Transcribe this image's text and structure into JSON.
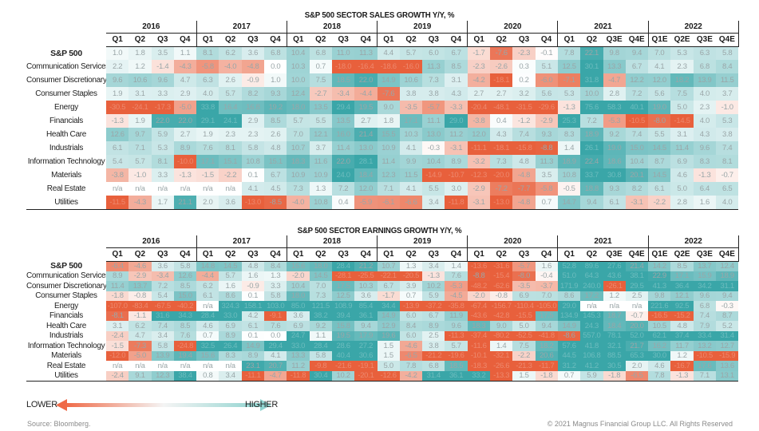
{
  "colors": {
    "low": "#e8603c",
    "mid": "#ffffff",
    "high": "#3aa6a8"
  },
  "legend": {
    "lower_label": "LOWER",
    "higher_label": "HIGHER",
    "low_color": "#ef6a47",
    "high_color": "#8fd3cf"
  },
  "footer": {
    "source": "Source: Bloomberg.",
    "copyright": "© 2021 Magnus Financial Group LLC. All Rights Reserved"
  },
  "chart_data": [
    {
      "type": "heatmap",
      "title": "S&P 500 SECTOR SALES GROWTH Y/Y, %",
      "years": [
        {
          "label": "2016",
          "quarters": [
            "Q1",
            "Q2",
            "Q3",
            "Q4"
          ]
        },
        {
          "label": "2017",
          "quarters": [
            "Q1",
            "Q2",
            "Q3",
            "Q4"
          ]
        },
        {
          "label": "2018",
          "quarters": [
            "Q1",
            "Q2",
            "Q3",
            "Q4"
          ]
        },
        {
          "label": "2019",
          "quarters": [
            "Q1",
            "Q2",
            "Q3",
            "Q4"
          ]
        },
        {
          "label": "2020",
          "quarters": [
            "Q1",
            "Q2",
            "Q3",
            "Q4"
          ]
        },
        {
          "label": "2021",
          "quarters": [
            "Q1",
            "Q2",
            "Q3E",
            "Q4E"
          ]
        },
        {
          "label": "2022",
          "quarters": [
            "Q1E",
            "Q2E",
            "Q3E",
            "Q4E"
          ]
        }
      ],
      "rows": [
        {
          "label": "S&P 500",
          "bold": true,
          "values": [
            "1.0",
            "1.8",
            "3.5",
            "1.1",
            "8.1",
            "6.2",
            "3.6",
            "6.8",
            "10.4",
            "6.8",
            "11.0",
            "11.3",
            "4.4",
            "5.7",
            "6.0",
            "6.7",
            "-1.7",
            "-7.6",
            "-2.3",
            "-0.1",
            "7.8",
            "22.1",
            "9.8",
            "9.4",
            "7.0",
            "5.3",
            "6.3",
            "5.8"
          ]
        },
        {
          "label": "Communication Services",
          "values": [
            "2.2",
            "1.2",
            "-1.4",
            "-4.3",
            "-5.8",
            "-4.0",
            "-4.8",
            "0.0",
            "10.3",
            "0.7",
            "-18.0",
            "-16.4",
            "-18.6",
            "-16.0",
            "11.3",
            "8.5",
            "-2.3",
            "-2.6",
            "0.3",
            "5.1",
            "12.5",
            "30.1",
            "13.3",
            "6.7",
            "4.1",
            "2.3",
            "6.8",
            "8.4"
          ]
        },
        {
          "label": "Consumer Discretionary",
          "values": [
            "9.6",
            "10.6",
            "9.6",
            "4.7",
            "6.3",
            "2.6",
            "-0.9",
            "1.0",
            "10.0",
            "7.5",
            "18.5",
            "22.0",
            "14.9",
            "10.6",
            "7.3",
            "3.1",
            "-4.2",
            "-18.1",
            "0.2",
            "-6.0",
            "-7.1",
            "31.8",
            "-4.7",
            "12.2",
            "12.0",
            "18.2",
            "13.9",
            "11.5"
          ]
        },
        {
          "label": "Consumer Staples",
          "values": [
            "1.9",
            "3.1",
            "3.3",
            "2.9",
            "4.0",
            "5.7",
            "8.2",
            "9.3",
            "12.4",
            "-2.7",
            "-3.4",
            "-4.4",
            "-7.6",
            "3.8",
            "3.8",
            "4.3",
            "2.7",
            "2.7",
            "3.2",
            "5.6",
            "5.3",
            "10.0",
            "2.8",
            "7.2",
            "5.6",
            "7.5",
            "4.0",
            "3.7"
          ]
        },
        {
          "label": "Energy",
          "values": [
            "-30.5",
            "-24.1",
            "-17.3",
            "-5.0",
            "33.8",
            "16.4",
            "16.8",
            "19.2",
            "18.0",
            "13.5",
            "29.4",
            "19.5",
            "9.0",
            "-3.5",
            "-5.7",
            "-3.3",
            "-20.4",
            "-48.1",
            "-31.5",
            "-29.6",
            "-1.3",
            "75.6",
            "58.3",
            "40.1",
            "19.0",
            "5.0",
            "2.3",
            "-1.0"
          ]
        },
        {
          "label": "Financials",
          "values": [
            "-1.3",
            "1.9",
            "22.0",
            "22.0",
            "29.1",
            "24.1",
            "2.9",
            "8.5",
            "5.7",
            "5.5",
            "13.5",
            "2.7",
            "1.8",
            "17.1",
            "11.1",
            "29.0",
            "-3.8",
            "0.4",
            "-1.2",
            "-2.9",
            "25.3",
            "7.2",
            "-5.3",
            "-10.5",
            "-8.0",
            "-14.5",
            "4.0",
            "5.3"
          ]
        },
        {
          "label": "Health Care",
          "values": [
            "12.6",
            "9.7",
            "5.9",
            "2.7",
            "1.9",
            "2.3",
            "2.3",
            "2.6",
            "7.0",
            "12.1",
            "16.0",
            "21.4",
            "15.5",
            "10.3",
            "13.0",
            "11.2",
            "12.0",
            "4.3",
            "7.4",
            "9.3",
            "8.3",
            "18.9",
            "9.2",
            "7.4",
            "5.5",
            "3.1",
            "4.3",
            "3.8"
          ]
        },
        {
          "label": "Industrials",
          "values": [
            "6.1",
            "7.1",
            "5.3",
            "8.9",
            "7.6",
            "8.1",
            "5.8",
            "4.8",
            "10.7",
            "3.7",
            "11.4",
            "13.0",
            "10.9",
            "4.1",
            "-0.3",
            "-3.1",
            "-11.1",
            "-18.1",
            "-15.8",
            "-8.8",
            "1.4",
            "26.1",
            "19.0",
            "15.0",
            "14.5",
            "11.4",
            "9.6",
            "7.4"
          ]
        },
        {
          "label": "Information Technology",
          "values": [
            "5.4",
            "5.7",
            "8.1",
            "-10.0",
            "17.1",
            "15.1",
            "10.8",
            "15.1",
            "18.3",
            "11.6",
            "22.0",
            "28.1",
            "11.4",
            "9.9",
            "10.4",
            "8.9",
            "-3.2",
            "7.3",
            "4.8",
            "11.3",
            "18.9",
            "22.4",
            "18.6",
            "10.4",
            "8.7",
            "6.9",
            "8.3",
            "8.1"
          ]
        },
        {
          "label": "Materials",
          "values": [
            "-3.8",
            "-1.0",
            "3.3",
            "-1.3",
            "-1.5",
            "-2.2",
            "0.1",
            "6.7",
            "10.9",
            "10.9",
            "24.0",
            "18.4",
            "12.3",
            "11.5",
            "-14.9",
            "-10.7",
            "-12.3",
            "-20.0",
            "-4.8",
            "3.5",
            "10.8",
            "33.7",
            "30.8",
            "20.1",
            "14.5",
            "4.6",
            "-1.3",
            "-0.7"
          ]
        },
        {
          "label": "Real Estate",
          "values": [
            "n/a",
            "n/a",
            "n/a",
            "n/a",
            "n/a",
            "n/a",
            "4.1",
            "4.5",
            "7.3",
            "1.3",
            "7.2",
            "12.0",
            "7.1",
            "4.1",
            "5.5",
            "3.0",
            "-2.9",
            "-7.2",
            "-7.7",
            "-5.8",
            "-0.5",
            "18.8",
            "9.3",
            "8.2",
            "6.1",
            "5.0",
            "6.4",
            "6.5"
          ]
        },
        {
          "label": "Utilities",
          "values": [
            "-11.5",
            "-4.3",
            "1.7",
            "21.1",
            "2.0",
            "3.6",
            "-13.0",
            "-8.5",
            "-4.0",
            "10.8",
            "0.4",
            "-5.9",
            "-6.1",
            "-6.6",
            "3.4",
            "-11.8",
            "-3.1",
            "-13.0",
            "-4.8",
            "0.7",
            "14.7",
            "9.4",
            "6.1",
            "-3.1",
            "-2.2",
            "2.8",
            "1.6",
            "4.0"
          ]
        }
      ]
    },
    {
      "type": "heatmap",
      "title": "S&P 500 SECTOR EARNINGS GROWTH Y/Y, %",
      "years": [
        {
          "label": "2016",
          "quarters": [
            "Q1",
            "Q2",
            "Q3",
            "Q4"
          ]
        },
        {
          "label": "2017",
          "quarters": [
            "Q1",
            "Q2",
            "Q3",
            "Q4"
          ]
        },
        {
          "label": "2018",
          "quarters": [
            "Q1",
            "Q2",
            "Q3",
            "Q4"
          ]
        },
        {
          "label": "2019",
          "quarters": [
            "Q1",
            "Q2",
            "Q3",
            "Q4"
          ]
        },
        {
          "label": "2020",
          "quarters": [
            "Q1",
            "Q2",
            "Q3",
            "Q4"
          ]
        },
        {
          "label": "2021",
          "quarters": [
            "Q1",
            "Q2",
            "Q3E",
            "Q4E"
          ]
        },
        {
          "label": "2022",
          "quarters": [
            "Q1E",
            "Q2E",
            "Q3E",
            "Q4E"
          ]
        }
      ],
      "rows": [
        {
          "label": "S&P 500",
          "bold": true,
          "values": [
            "-6.4",
            "-4.6",
            "3.6",
            "5.8",
            "14.8",
            "14.5",
            "4.8",
            "8.4",
            "16.6",
            "18.0",
            "28.4",
            "21.2",
            "10.7",
            "1.3",
            "3.4",
            "1.4",
            "-13.6",
            "-31.6",
            "-5.7",
            "1.6",
            "52.8",
            "89.6",
            "27.6",
            "21.4",
            "14.2",
            "8.5",
            "13.7",
            "12.4"
          ]
        },
        {
          "label": "Communication Services",
          "values": [
            "8.9",
            "-2.9",
            "-3.4",
            "12.6",
            "-4.4",
            "5.7",
            "1.6",
            "1.3",
            "-2.0",
            "14.5",
            "-28.1",
            "-25.5",
            "-22.1",
            "-20.5",
            "-1.3",
            "7.6",
            "-8.8",
            "-15.4",
            "-8.0",
            "-0.4",
            "51.0",
            "64.3",
            "43.6",
            "38.1",
            "22.9",
            "17.1",
            "15.9",
            "18.9"
          ]
        },
        {
          "label": "Consumer Discretionary",
          "values": [
            "11.4",
            "13.7",
            "7.2",
            "8.5",
            "6.2",
            "1.6",
            "-0.9",
            "3.3",
            "10.4",
            "7.0",
            "17.5",
            "10.3",
            "6.7",
            "3.9",
            "10.2",
            "-5.3",
            "-48.2",
            "-62.6",
            "-3.5",
            "-3.7",
            "171.9",
            "240.0",
            "-26.1",
            "29.5",
            "41.3",
            "36.4",
            "34.2",
            "31.1"
          ]
        },
        {
          "label": "Consumer Staples",
          "values": [
            "-1.8",
            "-0.8",
            "5.4",
            "15.0",
            "6.1",
            "8.6",
            "0.1",
            "5.8",
            "18.0",
            "7.3",
            "12.5",
            "3.6",
            "-1.7",
            "0.7",
            "5.9",
            "-4.5",
            "-2.0",
            "-0.8",
            "6.9",
            "7.0",
            "8.6",
            "17.2",
            "1.2",
            "2.5",
            "9.8",
            "12.1",
            "9.6",
            "9.4"
          ]
        },
        {
          "label": "Energy",
          "values": [
            "-107.0",
            "-83.4",
            "-67.5",
            "-40.2",
            "n/a",
            "324.3",
            "158.1",
            "103.0",
            "85.0",
            "121.5",
            "108.9",
            "85.4",
            "34.4",
            "-13.9",
            "-37.2",
            "-35.8",
            "-67.4",
            "-156.7",
            "-110.4",
            "-105.0",
            "29.0",
            "n/a",
            "n/a",
            "n/a",
            "221.6",
            "92.5",
            "6.8",
            "-0.3"
          ]
        },
        {
          "label": "Financials",
          "values": [
            "-8.1",
            "-1.1",
            "31.6",
            "34.3",
            "28.4",
            "33.0",
            "4.2",
            "-9.1",
            "3.6",
            "38.2",
            "39.4",
            "36.1",
            "14.9",
            "6.0",
            "6.7",
            "11.9",
            "-43.6",
            "-42.8",
            "-15.5",
            "17.5",
            "134.9",
            "145.3",
            "18.7",
            "-0.7",
            "-16.5",
            "-15.2",
            "7.4",
            "8.7"
          ]
        },
        {
          "label": "Health Care",
          "values": [
            "3.1",
            "6.2",
            "7.4",
            "8.5",
            "4.6",
            "6.9",
            "6.1",
            "7.6",
            "6.9",
            "9.2",
            "15.8",
            "9.4",
            "12.9",
            "8.4",
            "8.9",
            "9.6",
            "18.3",
            "9.0",
            "5.0",
            "9.4",
            "14.9",
            "24.3",
            "18.4",
            "20.0",
            "10.5",
            "4.8",
            "7.9",
            "5.2"
          ]
        },
        {
          "label": "Industrials",
          "values": [
            "-2.4",
            "4.7",
            "3.4",
            "7.6",
            "0.7",
            "8.9",
            "0.1",
            "0.0",
            "24.7",
            "1.1",
            "19.5",
            "17.9",
            "19.6",
            "6.0",
            "2.5",
            "-11.3",
            "-37.4",
            "-80.2",
            "-52.5",
            "-41.8",
            "-8.6",
            "557.0",
            "78.1",
            "52.0",
            "62.1",
            "37.4",
            "33.4",
            "31.4"
          ]
        },
        {
          "label": "Information Technology",
          "values": [
            "-1.5",
            "-7.3",
            "5.8",
            "-24.8",
            "32.5",
            "26.4",
            "14.9",
            "29.4",
            "33.0",
            "28.4",
            "28.6",
            "27.2",
            "1.5",
            "-4.6",
            "3.8",
            "5.7",
            "-11.6",
            "1.4",
            "7.5",
            "18.2",
            "57.6",
            "41.8",
            "32.1",
            "21.7",
            "16.2",
            "11.7",
            "13.2",
            "12.7"
          ]
        },
        {
          "label": "Materials",
          "values": [
            "-12.0",
            "-5.0",
            "13.9",
            "19.4",
            "15.6",
            "8.3",
            "8.9",
            "4.1",
            "13.3",
            "5.8",
            "40.4",
            "30.6",
            "1.5",
            "-6.5",
            "-21.2",
            "-19.6",
            "-10.1",
            "-32.1",
            "-2.2",
            "20.6",
            "44.5",
            "106.8",
            "88.5",
            "65.3",
            "30.0",
            "1.2",
            "-10.5",
            "-15.9"
          ]
        },
        {
          "label": "Real Estate",
          "values": [
            "n/a",
            "n/a",
            "n/a",
            "n/a",
            "n/a",
            "n/a",
            "23.1",
            "20.7",
            "11.2",
            "-9.8",
            "-21.6",
            "-19.1",
            "5.0",
            "7.8",
            "6.8",
            "18.5",
            "-18.3",
            "-26.6",
            "-21.3",
            "-11.7",
            "31.2",
            "41.2",
            "30.5",
            "2.0",
            "4.6",
            "-16.7",
            "17.6",
            "13.6"
          ]
        },
        {
          "label": "Utilities",
          "values": [
            "-2.4",
            "9.1",
            "12.3",
            "38.4",
            "0.8",
            "3.4",
            "-11.1",
            "-4.7",
            "-11.8",
            "30.4",
            "10.2",
            "-20.1",
            "-12.6",
            "-4.2",
            "31.4",
            "36.1",
            "33.2",
            "-13.3",
            "1.5",
            "-1.8",
            "0.7",
            "5.9",
            "-1.8",
            "-6.5",
            "7.8",
            "-1.3",
            "7.1",
            "13.1"
          ]
        }
      ]
    }
  ]
}
